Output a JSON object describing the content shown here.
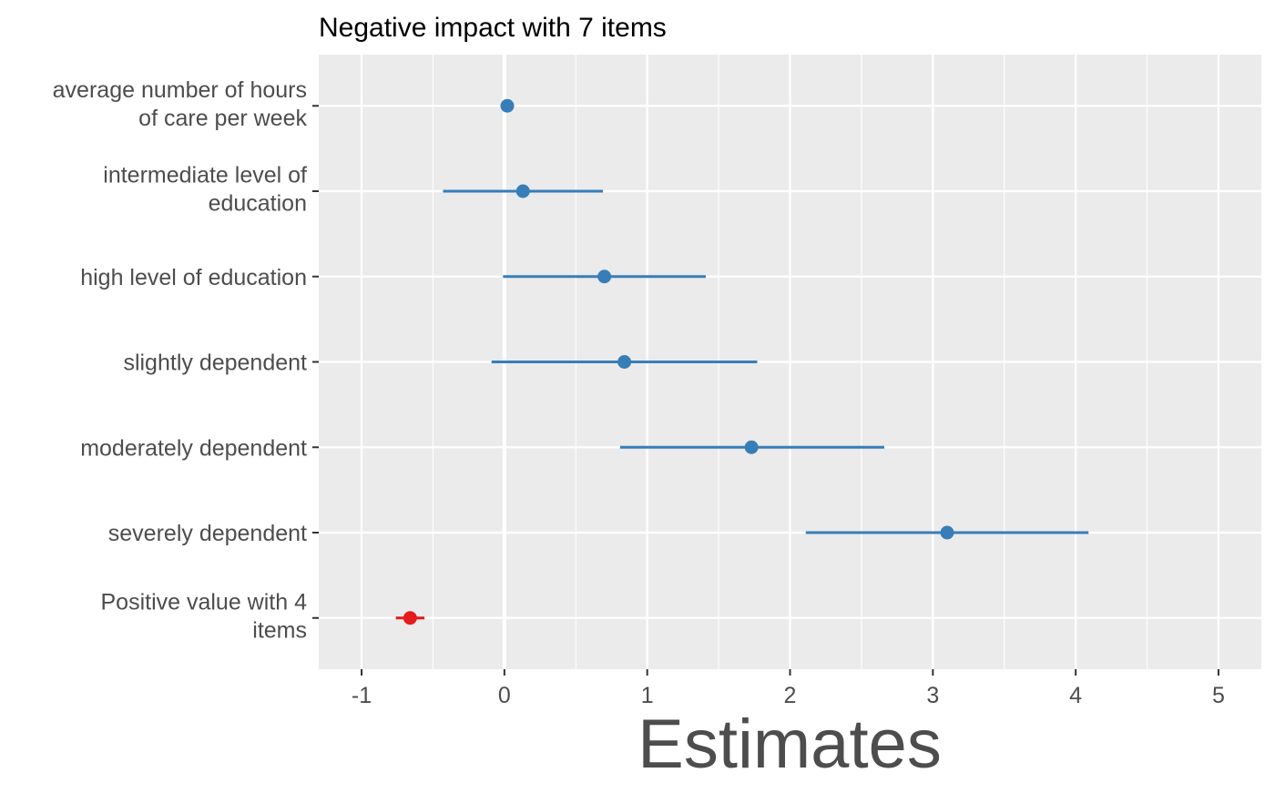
{
  "chart_data": {
    "type": "scatter",
    "title": "Negative impact with 7 items",
    "xlabel": "Estimates",
    "ylabel": "",
    "xlim": [
      -1.3,
      5.3
    ],
    "x_ticks": [
      {
        "value": -1,
        "label": "-1"
      },
      {
        "value": 0,
        "label": "0"
      },
      {
        "value": 1,
        "label": "1"
      },
      {
        "value": 2,
        "label": "2"
      },
      {
        "value": 3,
        "label": "3"
      },
      {
        "value": 4,
        "label": "4"
      },
      {
        "value": 5,
        "label": "5"
      }
    ],
    "grid": true,
    "zero_line": true,
    "terms": [
      {
        "label": [
          "average number of hours",
          "of care per week"
        ],
        "estimate": 0.02,
        "ci_low": 0.0,
        "ci_high": 0.04,
        "color": "#377EB8"
      },
      {
        "label": [
          "intermediate level of",
          "education"
        ],
        "estimate": 0.13,
        "ci_low": -0.43,
        "ci_high": 0.69,
        "color": "#377EB8"
      },
      {
        "label": [
          "high level of education"
        ],
        "estimate": 0.7,
        "ci_low": -0.01,
        "ci_high": 1.41,
        "color": "#377EB8"
      },
      {
        "label": [
          "slightly dependent"
        ],
        "estimate": 0.84,
        "ci_low": -0.09,
        "ci_high": 1.77,
        "color": "#377EB8"
      },
      {
        "label": [
          "moderately dependent"
        ],
        "estimate": 1.73,
        "ci_low": 0.81,
        "ci_high": 2.66,
        "color": "#377EB8"
      },
      {
        "label": [
          "severely dependent"
        ],
        "estimate": 3.1,
        "ci_low": 2.11,
        "ci_high": 4.09,
        "color": "#377EB8"
      },
      {
        "label": [
          "Positive value with 4",
          "items"
        ],
        "estimate": -0.66,
        "ci_low": -0.76,
        "ci_high": -0.56,
        "color": "#E41A1C"
      }
    ]
  }
}
